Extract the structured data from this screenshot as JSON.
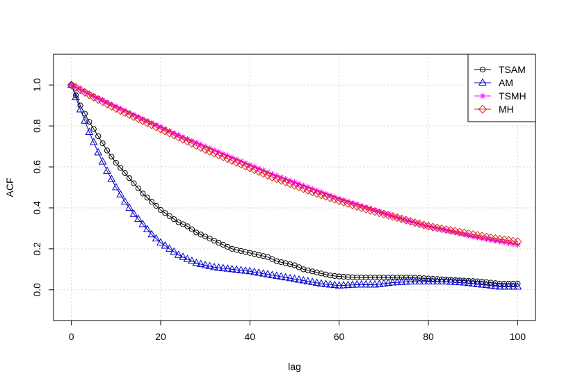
{
  "chart_data": {
    "type": "line",
    "xlabel": "lag",
    "ylabel": "ACF",
    "xlim": [
      -4,
      104
    ],
    "ylim": [
      -0.15,
      1.15
    ],
    "x_ticks": [
      0,
      20,
      40,
      60,
      80,
      100
    ],
    "y_ticks": [
      0.0,
      0.2,
      0.4,
      0.6,
      0.8,
      1.0
    ],
    "x_tick_labels": [
      "0",
      "20",
      "40",
      "60",
      "80",
      "100"
    ],
    "y_tick_labels": [
      "0.0",
      "0.2",
      "0.4",
      "0.6",
      "0.8",
      "1.0"
    ],
    "grid": true,
    "legend_position": "top-right",
    "series": [
      {
        "name": "TSAM",
        "color": "#000000",
        "marker": "circle",
        "points": [
          [
            0,
            1.0
          ],
          [
            2,
            0.9
          ],
          [
            4,
            0.82
          ],
          [
            6,
            0.75
          ],
          [
            8,
            0.68
          ],
          [
            10,
            0.62
          ],
          [
            12,
            0.57
          ],
          [
            14,
            0.52
          ],
          [
            16,
            0.47
          ],
          [
            18,
            0.43
          ],
          [
            20,
            0.39
          ],
          [
            22,
            0.36
          ],
          [
            24,
            0.33
          ],
          [
            26,
            0.31
          ],
          [
            28,
            0.28
          ],
          [
            30,
            0.26
          ],
          [
            32,
            0.24
          ],
          [
            34,
            0.22
          ],
          [
            36,
            0.2
          ],
          [
            38,
            0.19
          ],
          [
            40,
            0.18
          ],
          [
            42,
            0.17
          ],
          [
            44,
            0.16
          ],
          [
            46,
            0.14
          ],
          [
            48,
            0.13
          ],
          [
            50,
            0.12
          ],
          [
            52,
            0.1
          ],
          [
            54,
            0.09
          ],
          [
            56,
            0.08
          ],
          [
            58,
            0.07
          ],
          [
            60,
            0.065
          ],
          [
            64,
            0.06
          ],
          [
            68,
            0.06
          ],
          [
            72,
            0.06
          ],
          [
            76,
            0.06
          ],
          [
            80,
            0.055
          ],
          [
            84,
            0.05
          ],
          [
            88,
            0.045
          ],
          [
            92,
            0.04
          ],
          [
            96,
            0.03
          ],
          [
            100,
            0.03
          ]
        ]
      },
      {
        "name": "AM",
        "color": "#0000CD",
        "marker": "triangle",
        "points": [
          [
            0,
            1.0
          ],
          [
            1,
            0.94
          ],
          [
            2,
            0.88
          ],
          [
            4,
            0.77
          ],
          [
            6,
            0.67
          ],
          [
            8,
            0.58
          ],
          [
            10,
            0.5
          ],
          [
            12,
            0.43
          ],
          [
            14,
            0.37
          ],
          [
            16,
            0.32
          ],
          [
            18,
            0.27
          ],
          [
            20,
            0.23
          ],
          [
            22,
            0.2
          ],
          [
            24,
            0.17
          ],
          [
            26,
            0.15
          ],
          [
            28,
            0.13
          ],
          [
            30,
            0.12
          ],
          [
            32,
            0.11
          ],
          [
            36,
            0.1
          ],
          [
            40,
            0.09
          ],
          [
            44,
            0.075
          ],
          [
            48,
            0.06
          ],
          [
            52,
            0.045
          ],
          [
            56,
            0.03
          ],
          [
            60,
            0.02
          ],
          [
            64,
            0.025
          ],
          [
            68,
            0.025
          ],
          [
            72,
            0.035
          ],
          [
            76,
            0.04
          ],
          [
            80,
            0.04
          ],
          [
            84,
            0.04
          ],
          [
            88,
            0.035
          ],
          [
            92,
            0.025
          ],
          [
            96,
            0.015
          ],
          [
            100,
            0.015
          ]
        ]
      },
      {
        "name": "TSMH",
        "color": "#FF00FF",
        "marker": "asterisk",
        "points": [
          [
            0,
            1.0
          ],
          [
            5,
            0.945
          ],
          [
            10,
            0.895
          ],
          [
            15,
            0.845
          ],
          [
            20,
            0.795
          ],
          [
            25,
            0.745
          ],
          [
            30,
            0.7
          ],
          [
            35,
            0.655
          ],
          [
            40,
            0.61
          ],
          [
            45,
            0.565
          ],
          [
            50,
            0.525
          ],
          [
            55,
            0.485
          ],
          [
            60,
            0.445
          ],
          [
            65,
            0.41
          ],
          [
            70,
            0.375
          ],
          [
            75,
            0.34
          ],
          [
            80,
            0.31
          ],
          [
            85,
            0.285
          ],
          [
            90,
            0.26
          ],
          [
            95,
            0.24
          ],
          [
            100,
            0.22
          ]
        ]
      },
      {
        "name": "MH",
        "color": "#DD2222",
        "marker": "diamond",
        "points": [
          [
            0,
            1.0
          ],
          [
            5,
            0.94
          ],
          [
            10,
            0.885
          ],
          [
            15,
            0.835
          ],
          [
            20,
            0.785
          ],
          [
            25,
            0.735
          ],
          [
            30,
            0.685
          ],
          [
            35,
            0.64
          ],
          [
            40,
            0.595
          ],
          [
            45,
            0.55
          ],
          [
            50,
            0.51
          ],
          [
            55,
            0.47
          ],
          [
            60,
            0.435
          ],
          [
            65,
            0.4
          ],
          [
            70,
            0.37
          ],
          [
            75,
            0.34
          ],
          [
            80,
            0.31
          ],
          [
            85,
            0.29
          ],
          [
            90,
            0.27
          ],
          [
            95,
            0.25
          ],
          [
            100,
            0.235
          ]
        ]
      }
    ]
  }
}
